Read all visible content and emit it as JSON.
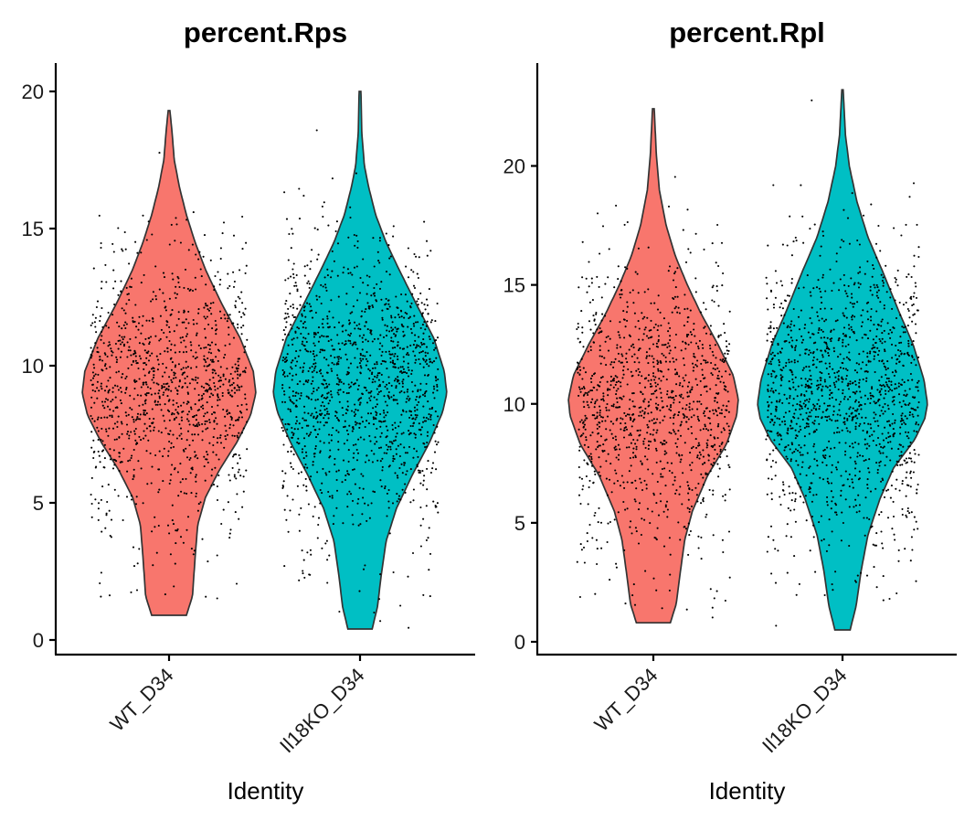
{
  "chart_data": [
    {
      "type": "violin",
      "title": "percent.Rps",
      "xlabel": "Identity",
      "ylabel": "",
      "ylim": [
        0,
        20
      ],
      "yticks": [
        0,
        5,
        10,
        15,
        20
      ],
      "categories": [
        "WT_D34",
        "Il18KO_D34"
      ],
      "series": [
        {
          "category": "WT_D34",
          "color": "#F8766D",
          "min": 0.9,
          "max": 19.3,
          "median": 9.2,
          "n_cells": 1150,
          "jitter_y_range": [
            0.9,
            19.3
          ]
        },
        {
          "category": "Il18KO_D34",
          "color": "#00BFC4",
          "min": 0.4,
          "max": 20.0,
          "median": 9.3,
          "n_cells": 1350,
          "jitter_y_range": [
            0.4,
            20.0
          ]
        }
      ]
    },
    {
      "type": "violin",
      "title": "percent.Rpl",
      "xlabel": "Identity",
      "ylabel": "",
      "ylim": [
        0,
        23.5
      ],
      "yticks": [
        0,
        5,
        10,
        15,
        20
      ],
      "categories": [
        "WT_D34",
        "Il18KO_D34"
      ],
      "series": [
        {
          "category": "WT_D34",
          "color": "#F8766D",
          "min": 0.8,
          "max": 22.4,
          "median": 10.2,
          "n_cells": 1150,
          "jitter_y_range": [
            0.8,
            22.4
          ]
        },
        {
          "category": "Il18KO_D34",
          "color": "#00BFC4",
          "min": 0.5,
          "max": 23.2,
          "median": 10.0,
          "n_cells": 1350,
          "jitter_y_range": [
            0.5,
            23.2
          ]
        }
      ]
    }
  ]
}
